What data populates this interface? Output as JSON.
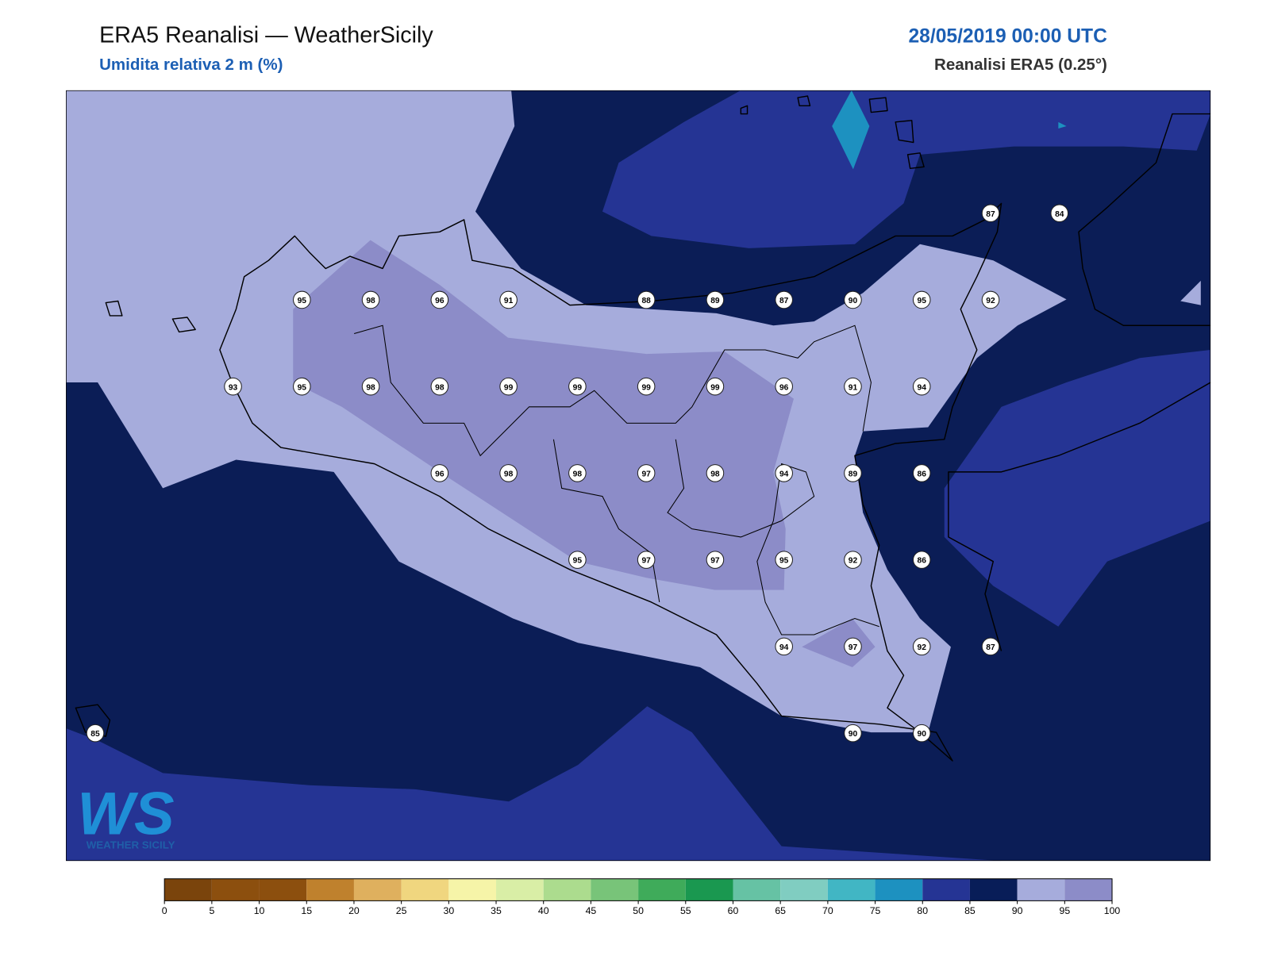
{
  "header": {
    "title": "ERA5 Reanalisi — WeatherSicily",
    "subtitle": "Umidita relativa 2 m (%)",
    "date": "28/05/2019 00:00 UTC",
    "source": "Reanalisi ERA5 (0.25°)"
  },
  "stations": {
    "rows": [
      [
        null,
        null,
        null,
        null,
        null,
        null,
        null,
        null,
        null,
        null,
        null,
        null,
        null,
        87,
        84
      ],
      [
        null,
        null,
        null,
        95,
        98,
        96,
        91,
        null,
        88,
        89,
        87,
        90,
        95,
        92,
        null
      ],
      [
        null,
        null,
        93,
        95,
        98,
        98,
        99,
        99,
        99,
        99,
        96,
        91,
        94,
        null,
        null
      ],
      [
        null,
        null,
        null,
        null,
        null,
        96,
        98,
        98,
        97,
        98,
        94,
        89,
        86,
        null,
        null
      ],
      [
        null,
        null,
        null,
        null,
        null,
        null,
        null,
        95,
        97,
        97,
        95,
        92,
        86,
        null,
        null
      ],
      [
        null,
        null,
        null,
        null,
        null,
        null,
        null,
        null,
        null,
        null,
        94,
        97,
        92,
        87,
        null
      ],
      [
        85,
        null,
        null,
        null,
        null,
        null,
        null,
        null,
        null,
        null,
        null,
        90,
        90,
        null,
        null
      ]
    ]
  },
  "logo": {
    "mark": "WS",
    "text": "WEATHER SICILY"
  },
  "colorbar": {
    "ticks": [
      0,
      5,
      10,
      15,
      20,
      25,
      30,
      35,
      40,
      45,
      50,
      55,
      60,
      65,
      70,
      75,
      80,
      85,
      90,
      95,
      100
    ],
    "colors": [
      "#7a440c",
      "#8c4f0e",
      "#8c4f0e",
      "#bf812d",
      "#dfb05e",
      "#f0d67f",
      "#f6f4a8",
      "#d9eea6",
      "#acdc8e",
      "#78c479",
      "#3fab5a",
      "#1a9850",
      "#66c2a4",
      "#80cdc1",
      "#41b6c4",
      "#1d91c0",
      "#253494",
      "#081d58",
      "#a6acdc",
      "#8c8cc8"
    ]
  }
}
